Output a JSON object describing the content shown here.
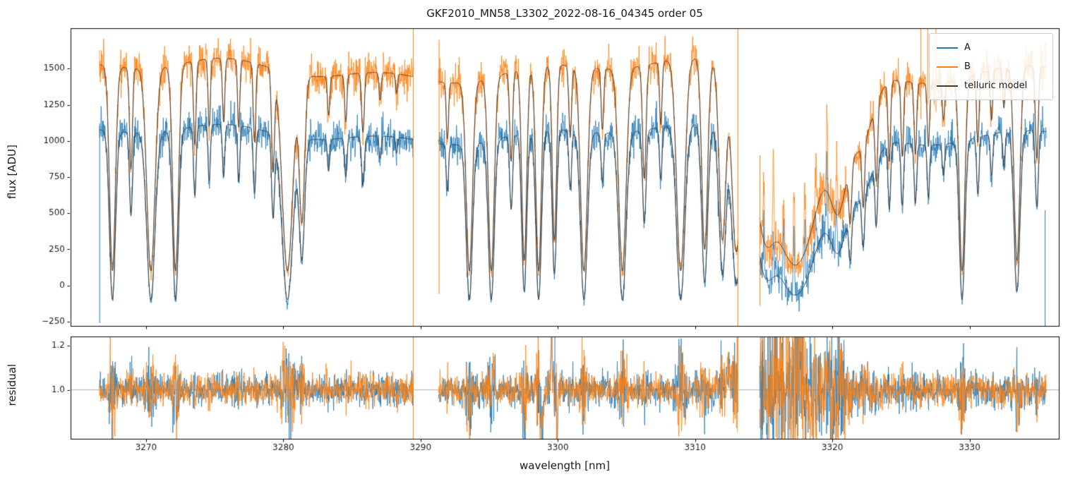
{
  "chart_data": {
    "type": "line",
    "title": "GKF2010_MN58_L3302_2022-08-16_04345  order 05",
    "xlabel": "wavelength [nm]",
    "xlim": [
      3264.5,
      3336.5
    ],
    "xticks": [
      3270,
      3280,
      3290,
      3300,
      3310,
      3320,
      3330
    ],
    "flux_panel": {
      "ylabel": "flux [ADU]",
      "ylim": [
        -280,
        1780
      ],
      "yticks": [
        -250,
        0,
        250,
        500,
        750,
        1000,
        1250,
        1500
      ]
    },
    "residual_panel": {
      "ylabel": "residual",
      "ylim": [
        0.78,
        1.24
      ],
      "yticks": [
        1.0,
        1.2
      ],
      "refline": 1.0
    },
    "legend": [
      {
        "label": "A",
        "color": "#1f77b4"
      },
      {
        "label": "B",
        "color": "#ff7f0e"
      },
      {
        "label": "telluric model",
        "color": "#3a3a3a"
      }
    ],
    "segments": [
      [
        3266.6,
        3289.5
      ],
      [
        3291.3,
        3313.1
      ],
      [
        3314.7,
        3335.6
      ]
    ],
    "series": {
      "A": {
        "color": "#1f77b4",
        "offset": -100,
        "amplitude": 1180,
        "noise_base": 22,
        "noise_scale": 34
      },
      "B": {
        "color": "#ff7f0e",
        "offset": 100,
        "amplitude": 1430,
        "noise_base": 26,
        "noise_scale": 40
      },
      "model": {
        "color": "#3a3a3a"
      }
    },
    "telluric_lines": [
      [
        3267.55,
        1.0,
        0.3
      ],
      [
        3268.9,
        0.5,
        0.15
      ],
      [
        3270.35,
        1.0,
        0.42
      ],
      [
        3272.15,
        1.0,
        0.3
      ],
      [
        3273.55,
        0.4,
        0.13
      ],
      [
        3274.6,
        0.32,
        0.12
      ],
      [
        3275.65,
        0.3,
        0.12
      ],
      [
        3276.75,
        0.32,
        0.12
      ],
      [
        3277.9,
        0.38,
        0.13
      ],
      [
        3279.25,
        0.5,
        0.15
      ],
      [
        3280.3,
        1.0,
        0.55
      ],
      [
        3281.35,
        0.75,
        0.28
      ],
      [
        3283.3,
        0.2,
        0.12
      ],
      [
        3284.55,
        0.24,
        0.12
      ],
      [
        3285.8,
        0.3,
        0.14
      ],
      [
        3287.05,
        0.14,
        0.11
      ],
      [
        3288.25,
        0.1,
        0.1
      ],
      [
        3291.95,
        0.3,
        0.12
      ],
      [
        3293.55,
        1.0,
        0.32
      ],
      [
        3295.15,
        1.0,
        0.3
      ],
      [
        3296.6,
        0.45,
        0.15
      ],
      [
        3297.55,
        0.95,
        0.25
      ],
      [
        3298.6,
        1.0,
        0.28
      ],
      [
        3299.75,
        0.85,
        0.22
      ],
      [
        3300.9,
        0.35,
        0.14
      ],
      [
        3301.9,
        1.0,
        0.35
      ],
      [
        3303.25,
        0.3,
        0.13
      ],
      [
        3304.7,
        1.0,
        0.38
      ],
      [
        3306.3,
        0.55,
        0.18
      ],
      [
        3307.5,
        0.3,
        0.13
      ],
      [
        3308.95,
        1.0,
        0.42
      ],
      [
        3310.7,
        0.9,
        0.3
      ],
      [
        3312.0,
        0.85,
        0.35
      ],
      [
        3313.0,
        0.9,
        0.45
      ],
      [
        3317.3,
        0.97,
        2.6
      ],
      [
        3315.2,
        0.75,
        1.0
      ],
      [
        3320.4,
        0.6,
        0.9
      ],
      [
        3322.0,
        0.35,
        1.3
      ],
      [
        3321.3,
        0.55,
        0.15
      ],
      [
        3322.25,
        0.5,
        0.14
      ],
      [
        3323.2,
        0.46,
        0.14
      ],
      [
        3324.15,
        0.42,
        0.13
      ],
      [
        3325.1,
        0.4,
        0.13
      ],
      [
        3326.05,
        0.38,
        0.13
      ],
      [
        3327.0,
        0.34,
        0.12
      ],
      [
        3328.1,
        0.2,
        0.12
      ],
      [
        3329.45,
        1.0,
        0.28
      ],
      [
        3330.6,
        0.35,
        0.13
      ],
      [
        3331.6,
        0.25,
        0.12
      ],
      [
        3332.5,
        0.2,
        0.12
      ],
      [
        3333.45,
        0.95,
        0.3
      ],
      [
        3334.9,
        0.45,
        0.15
      ]
    ],
    "band_spikes": [
      [
        3315.0,
        0.3,
        0.06
      ],
      [
        3315.7,
        0.35,
        0.06
      ],
      [
        3316.45,
        0.3,
        0.07
      ],
      [
        3317.2,
        0.4,
        0.06
      ],
      [
        3318.0,
        0.35,
        0.07
      ],
      [
        3318.8,
        0.3,
        0.06
      ],
      [
        3319.6,
        0.35,
        0.07
      ],
      [
        3320.3,
        0.3,
        0.06
      ]
    ],
    "residual_features": [
      [
        3298.85,
        0.12,
        -0.16
      ],
      [
        3299.55,
        0.06,
        0.3
      ],
      [
        3299.95,
        0.05,
        -0.25
      ],
      [
        3293.6,
        0.07,
        -0.1
      ],
      [
        3297.6,
        0.06,
        -0.1
      ],
      [
        3316.5,
        0.5,
        0.05
      ],
      [
        3312.5,
        0.3,
        0.06
      ]
    ],
    "noise": {
      "seed": 20220816,
      "low_band_boost": 2.2,
      "residual_base": 0.035,
      "residual_scale": 0.08,
      "residual_seg3_boost": 1.7
    },
    "artifacts_flux": [
      {
        "x": 3266.62,
        "series": "A",
        "y0": -260,
        "y1": 1120
      },
      {
        "x": 3289.47,
        "series": "B",
        "y0": -280,
        "y1": 1780
      },
      {
        "x": 3291.35,
        "series": "B",
        "y0": -60,
        "y1": 1700
      },
      {
        "x": 3313.12,
        "series": "B",
        "y0": -280,
        "y1": 1780
      },
      {
        "x": 3314.72,
        "series": "B",
        "y0": -140,
        "y1": 900
      },
      {
        "x": 3326.45,
        "series": "B",
        "y0": 1150,
        "y1": 1780
      },
      {
        "x": 3326.95,
        "series": "B",
        "y0": 1250,
        "y1": 1780
      },
      {
        "x": 3327.55,
        "series": "B",
        "y0": 1200,
        "y1": 1780
      },
      {
        "x": 3335.5,
        "series": "A",
        "y0": -280,
        "y1": 520
      }
    ],
    "artifacts_residual": [
      {
        "x": 3289.47,
        "series": "B",
        "y0": 0.78,
        "y1": 1.24
      },
      {
        "x": 3299.78,
        "series": "A",
        "y0": 0.88,
        "y1": 1.24
      },
      {
        "x": 3299.9,
        "series": "B",
        "y0": 0.78,
        "y1": 1.12
      },
      {
        "x": 3313.12,
        "series": "B",
        "y0": 0.9,
        "y1": 1.24
      },
      {
        "x": 3314.9,
        "series": "A",
        "y0": 0.78,
        "y1": 1.24
      }
    ]
  }
}
